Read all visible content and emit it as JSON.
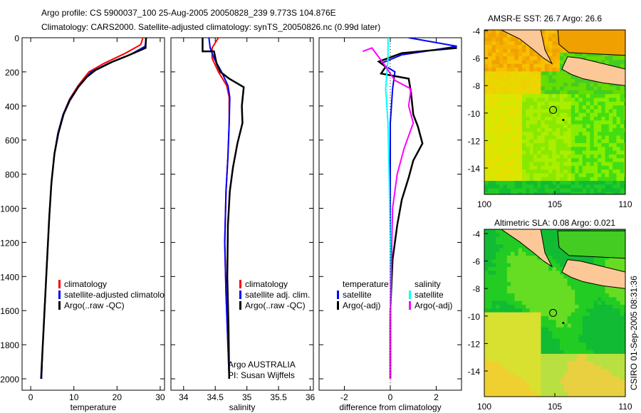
{
  "header": {
    "line1": "Argo profile: CS 5900037_100 25-Aug-2005 20050828_239 9.773S 104.876E",
    "line2": "Climatology: CARS2000. Satellite-adjusted climatology: synTS_20050826.nc (0.99d later)"
  },
  "footer": {
    "stamp": "CSIRO 01-Sep-2005 08:31:36"
  },
  "chart_data": [
    {
      "type": "line",
      "xlabel": "temperature",
      "ylabel": "",
      "xlim": [
        -2,
        31
      ],
      "ylim": [
        2000,
        0
      ],
      "xticks": [
        0,
        10,
        20,
        30
      ],
      "yticks": [
        0,
        200,
        400,
        600,
        800,
        1000,
        1200,
        1400,
        1600,
        1800,
        2000
      ],
      "legend": [
        "climatology",
        "satellite-adjusted climatology",
        "Argo(..raw -QC)"
      ],
      "series": [
        {
          "name": "climatology",
          "color": "#ff0000",
          "points": [
            [
              26,
              0
            ],
            [
              25.5,
              40
            ],
            [
              22,
              90
            ],
            [
              17,
              150
            ],
            [
              13.5,
              200
            ],
            [
              11,
              280
            ],
            [
              9,
              360
            ],
            [
              7.5,
              450
            ],
            [
              6.3,
              560
            ],
            [
              5.5,
              680
            ],
            [
              4.8,
              850
            ],
            [
              4.3,
              1050
            ],
            [
              3.9,
              1250
            ],
            [
              3.5,
              1450
            ],
            [
              3.1,
              1650
            ],
            [
              2.7,
              1850
            ],
            [
              2.5,
              2000
            ]
          ]
        },
        {
          "name": "satellite-adjusted climatology",
          "color": "#0000ff",
          "points": [
            [
              26.8,
              0
            ],
            [
              26.5,
              50
            ],
            [
              23,
              100
            ],
            [
              18,
              150
            ],
            [
              14,
              200
            ],
            [
              11.2,
              280
            ],
            [
              9.1,
              360
            ],
            [
              7.5,
              450
            ],
            [
              6.3,
              560
            ],
            [
              5.5,
              680
            ],
            [
              4.8,
              850
            ],
            [
              4.3,
              1050
            ],
            [
              3.9,
              1250
            ],
            [
              3.5,
              1450
            ],
            [
              3.1,
              1650
            ],
            [
              2.7,
              1850
            ],
            [
              2.5,
              2000
            ]
          ]
        },
        {
          "name": "Argo(..raw -QC)",
          "color": "#000000",
          "points": [
            [
              26.7,
              0
            ],
            [
              26.6,
              60
            ],
            [
              22,
              110
            ],
            [
              19,
              140
            ],
            [
              15,
              190
            ],
            [
              13,
              230
            ],
            [
              11,
              290
            ],
            [
              9,
              370
            ],
            [
              7.6,
              450
            ],
            [
              6.4,
              560
            ],
            [
              5.5,
              680
            ],
            [
              4.8,
              850
            ],
            [
              4.3,
              1050
            ],
            [
              3.9,
              1250
            ],
            [
              3.5,
              1450
            ],
            [
              3.1,
              1650
            ],
            [
              2.7,
              1850
            ],
            [
              2.4,
              2000
            ]
          ]
        }
      ]
    },
    {
      "type": "line",
      "xlabel": "salinity",
      "ylabel": "",
      "xlim": [
        33.8,
        36.05
      ],
      "ylim": [
        2000,
        0
      ],
      "xticks": [
        34,
        34.5,
        35,
        35.5,
        36
      ],
      "yticks": [
        0,
        200,
        400,
        600,
        800,
        1000,
        1200,
        1400,
        1600,
        1800,
        2000
      ],
      "legend": [
        "climatology",
        "satellite adj. clim.",
        "Argo(..raw -QC)"
      ],
      "annotations": [
        "Argo AUSTRALIA",
        "PI: Susan Wijffels"
      ],
      "series": [
        {
          "name": "climatology",
          "color": "#ff0000",
          "points": [
            [
              34.55,
              0
            ],
            [
              34.45,
              60
            ],
            [
              34.45,
              120
            ],
            [
              34.55,
              200
            ],
            [
              34.68,
              280
            ],
            [
              34.72,
              350
            ],
            [
              34.72,
              500
            ],
            [
              34.7,
              700
            ],
            [
              34.67,
              900
            ],
            [
              34.65,
              1200
            ],
            [
              34.67,
              1500
            ],
            [
              34.7,
              1800
            ],
            [
              34.72,
              2000
            ]
          ]
        },
        {
          "name": "satellite adj. clim.",
          "color": "#0000ff",
          "points": [
            [
              34.4,
              0
            ],
            [
              34.42,
              60
            ],
            [
              34.48,
              120
            ],
            [
              34.6,
              200
            ],
            [
              34.7,
              280
            ],
            [
              34.73,
              350
            ],
            [
              34.72,
              500
            ],
            [
              34.7,
              700
            ],
            [
              34.67,
              900
            ],
            [
              34.65,
              1200
            ],
            [
              34.67,
              1500
            ],
            [
              34.7,
              1800
            ],
            [
              34.72,
              2000
            ]
          ]
        },
        {
          "name": "Argo(..raw -QC)",
          "color": "#000000",
          "points": [
            [
              34.3,
              0
            ],
            [
              34.3,
              80
            ],
            [
              34.48,
              80
            ],
            [
              34.52,
              150
            ],
            [
              34.58,
              200
            ],
            [
              34.72,
              240
            ],
            [
              34.95,
              290
            ],
            [
              34.92,
              400
            ],
            [
              34.93,
              500
            ],
            [
              34.85,
              620
            ],
            [
              34.78,
              760
            ],
            [
              34.73,
              900
            ],
            [
              34.7,
              1100
            ],
            [
              34.69,
              1400
            ],
            [
              34.71,
              1700
            ],
            [
              34.72,
              2000
            ]
          ]
        }
      ]
    },
    {
      "type": "line",
      "xlabel": "difference from climatology",
      "ylabel": "",
      "xlim": [
        -3.1,
        3.1
      ],
      "ylim": [
        2000,
        0
      ],
      "xticks": [
        -2,
        0,
        2
      ],
      "yticks": [
        0,
        200,
        400,
        600,
        800,
        1000,
        1200,
        1400,
        1600,
        1800,
        2000
      ],
      "legend": [
        "temperature",
        "satellite",
        "Argo(-adj)",
        "salinity",
        "satellite",
        "Argo(-adj)"
      ],
      "series": [
        {
          "name": "temperature satellite",
          "color": "#0000ff",
          "points": [
            [
              0.8,
              0
            ],
            [
              2.9,
              50
            ],
            [
              1.5,
              80
            ],
            [
              0.5,
              100
            ],
            [
              -0.4,
              150
            ],
            [
              0.2,
              200
            ],
            [
              0.1,
              300
            ],
            [
              0,
              500
            ],
            [
              0,
              800
            ],
            [
              0,
              1200
            ],
            [
              0,
              2000
            ]
          ]
        },
        {
          "name": "temperature Argo(-adj)",
          "color": "#000000",
          "points": [
            [
              2.9,
              60
            ],
            [
              0.5,
              90
            ],
            [
              -0.5,
              140
            ],
            [
              -0.2,
              170
            ],
            [
              -0.4,
              210
            ],
            [
              0.8,
              240
            ],
            [
              0.9,
              320
            ],
            [
              1.0,
              450
            ],
            [
              1.2,
              520
            ],
            [
              1.4,
              620
            ],
            [
              1.0,
              720
            ],
            [
              0.8,
              820
            ],
            [
              0.5,
              950
            ],
            [
              0.3,
              1100
            ],
            [
              0.1,
              1300
            ],
            [
              0,
              1600
            ],
            [
              0,
              2000
            ]
          ]
        },
        {
          "name": "salinity satellite",
          "color": "#00ffff",
          "points": [
            [
              -0.1,
              0
            ],
            [
              -0.1,
              120
            ],
            [
              -0.2,
              300
            ],
            [
              -0.1,
              500
            ],
            [
              -0.05,
              800
            ],
            [
              0,
              1200
            ],
            [
              0,
              2000
            ]
          ]
        },
        {
          "name": "salinity Argo(-adj)",
          "color": "#ff00ff",
          "points": [
            [
              -1.2,
              80
            ],
            [
              -0.8,
              60
            ],
            [
              -0.3,
              150
            ],
            [
              0.2,
              250
            ],
            [
              0.9,
              300
            ],
            [
              0.8,
              400
            ],
            [
              1.0,
              500
            ],
            [
              0.6,
              650
            ],
            [
              0.3,
              800
            ],
            [
              0.1,
              1000
            ],
            [
              0.05,
              1300
            ],
            [
              0,
              1700
            ],
            [
              0,
              2000
            ]
          ]
        }
      ]
    },
    {
      "type": "heatmap",
      "title": "AMSR-E SST: 26.7 Argo: 26.6",
      "xlim": [
        99.7,
        110
      ],
      "ylim": [
        -15.8,
        -3.8
      ],
      "xticks": [
        100,
        105,
        110
      ],
      "yticks": [
        -4,
        -6,
        -8,
        -10,
        -12,
        -14
      ],
      "marker": [
        104.876,
        -9.773
      ]
    },
    {
      "type": "heatmap",
      "title": "Altimetric SLA: 0.08 Argo: 0.021",
      "xlim": [
        99.7,
        110
      ],
      "ylim": [
        -15.8,
        -3.8
      ],
      "xticks": [
        100,
        105,
        110
      ],
      "yticks": [
        -4,
        -6,
        -8,
        -10,
        -12,
        -14
      ],
      "marker": [
        104.876,
        -9.773
      ]
    }
  ]
}
